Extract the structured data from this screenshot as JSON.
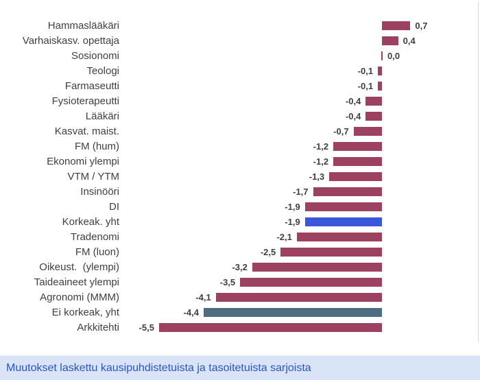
{
  "chart_data": {
    "type": "bar",
    "orientation": "horizontal",
    "title": "",
    "xlabel": "",
    "ylabel": "",
    "xlim": [
      -6.5,
      2.4
    ],
    "grid": false,
    "legend": false,
    "categories": [
      "Hammaslääkäri",
      "Varhaiskasv. opettaja",
      "Sosionomi",
      "Teologi",
      "Farmaseutti",
      "Fysioterapeutti",
      "Lääkäri",
      "Kasvat. maist.",
      "FM (hum)",
      "Ekonomi ylempi",
      "VTM / YTM",
      "Insinööri",
      "DI",
      "Korkeak. yht",
      "Tradenomi",
      "FM (luon)",
      "Oikeust.  (ylempi)",
      "Taideaineet ylempi",
      "Agronomi (MMM)",
      "Ei korkeak, yht",
      "Arkkitehti"
    ],
    "values": [
      0.7,
      0.4,
      0.0,
      -0.1,
      -0.1,
      -0.4,
      -0.4,
      -0.7,
      -1.2,
      -1.2,
      -1.3,
      -1.7,
      -1.9,
      -1.9,
      -2.1,
      -2.5,
      -3.2,
      -3.5,
      -4.1,
      -4.4,
      -5.5
    ],
    "value_labels": [
      "0,7",
      "0,4",
      "0,0",
      "-0,1",
      "-0,1",
      "-0,4",
      "-0,4",
      "-0,7",
      "-1,2",
      "-1,2",
      "-1,3",
      "-1,7",
      "-1,9",
      "-1,9",
      "-2,1",
      "-2,5",
      "-3,2",
      "-3,5",
      "-4,1",
      "-4,4",
      "-5,5"
    ],
    "bar_colors": [
      "#9d4160",
      "#9d4160",
      "#9d4160",
      "#9d4160",
      "#9d4160",
      "#9d4160",
      "#9d4160",
      "#9d4160",
      "#9d4160",
      "#9d4160",
      "#9d4160",
      "#9d4160",
      "#9d4160",
      "#3a57db",
      "#9d4160",
      "#9d4160",
      "#9d4160",
      "#9d4160",
      "#9d4160",
      "#4f6d80",
      "#9d4160"
    ]
  },
  "colors": {
    "bar_default": "#9d4160",
    "bar_highlight": "#3a57db",
    "bar_secondary": "#4f6d80",
    "label_text": "#3f3f3f",
    "caption_text": "#2b52c9",
    "caption_bg": "#d9e5f7",
    "plot_border": "#d9d9d9",
    "background": "#ffffff"
  },
  "footer": {
    "caption": "Muutokset laskettu kausipuhdistetuista ja tasoitetuista sarjoista"
  }
}
